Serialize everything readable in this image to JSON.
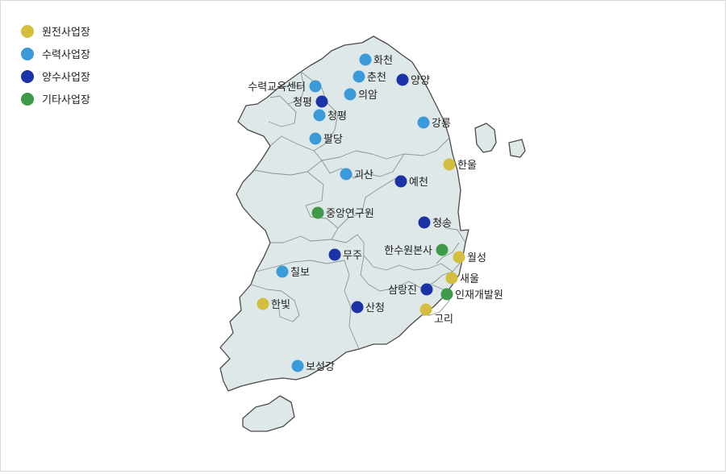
{
  "legend": [
    {
      "label": "원전사업장",
      "color": "#d4be3e"
    },
    {
      "label": "수력사업장",
      "color": "#3a9bd8"
    },
    {
      "label": "양수사업장",
      "color": "#1c33a8"
    },
    {
      "label": "기타사업장",
      "color": "#3e9a48"
    }
  ],
  "sites": [
    {
      "name": "화천",
      "type": "수력사업장"
    },
    {
      "name": "춘천",
      "type": "수력사업장"
    },
    {
      "name": "양양",
      "type": "양수사업장"
    },
    {
      "name": "수력교육센터",
      "type": "수력사업장"
    },
    {
      "name": "의암",
      "type": "수력사업장"
    },
    {
      "name": "청평",
      "type": "양수사업장"
    },
    {
      "name": "청평",
      "type": "수력사업장"
    },
    {
      "name": "강릉",
      "type": "수력사업장"
    },
    {
      "name": "팔당",
      "type": "수력사업장"
    },
    {
      "name": "한울",
      "type": "원전사업장"
    },
    {
      "name": "괴산",
      "type": "수력사업장"
    },
    {
      "name": "예천",
      "type": "양수사업장"
    },
    {
      "name": "중앙연구원",
      "type": "기타사업장"
    },
    {
      "name": "청송",
      "type": "양수사업장"
    },
    {
      "name": "한수원본사",
      "type": "기타사업장"
    },
    {
      "name": "무주",
      "type": "양수사업장"
    },
    {
      "name": "월성",
      "type": "원전사업장"
    },
    {
      "name": "칠보",
      "type": "수력사업장"
    },
    {
      "name": "새울",
      "type": "원전사업장"
    },
    {
      "name": "삼랑진",
      "type": "양수사업장"
    },
    {
      "name": "인재개발원",
      "type": "기타사업장"
    },
    {
      "name": "한빛",
      "type": "원전사업장"
    },
    {
      "name": "산청",
      "type": "양수사업장"
    },
    {
      "name": "고리",
      "type": "원전사업장"
    },
    {
      "name": "보성강",
      "type": "수력사업장"
    }
  ]
}
